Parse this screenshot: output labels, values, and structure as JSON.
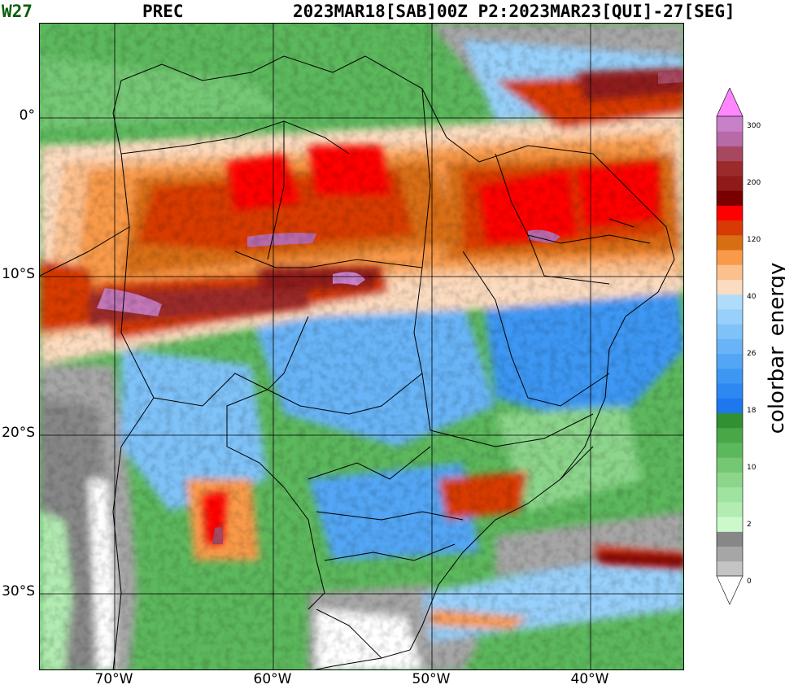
{
  "header": {
    "model_tag": "W27",
    "variable": "PREC",
    "dates": "2023MAR18[SAB]00Z P2:2023MAR23[QUI]-27[SEG]"
  },
  "map": {
    "lat_labels": [
      "0°",
      "10°S",
      "20°S",
      "30°S"
    ],
    "lon_labels": [
      "70°W",
      "60°W",
      "50°W",
      "40°W"
    ]
  },
  "colorbar": {
    "label": "colorbar_energy",
    "tick_labels": [
      "0",
      "2",
      "10",
      "18",
      "26",
      "40",
      "120",
      "200",
      "300"
    ],
    "colors": [
      "#ffffff",
      "#c4c4c4",
      "#a6a6a6",
      "#878787",
      "#ccf9cc",
      "#b2ecb2",
      "#a0e2a0",
      "#8cd68c",
      "#74c874",
      "#5cb85c",
      "#48a848",
      "#319031",
      "#1f77f0",
      "#2d88f2",
      "#3e97f3",
      "#52a6f5",
      "#68b4f7",
      "#7ec2f8",
      "#97d0fa",
      "#afdcfb",
      "#fcdcc0",
      "#fcc08c",
      "#f89a4a",
      "#d86e14",
      "#d83a06",
      "#ff0000",
      "#7a0000",
      "#8f1a1a",
      "#9b2a2a",
      "#a84860",
      "#b86aa8",
      "#c880c8",
      "#ff86ff"
    ]
  }
}
